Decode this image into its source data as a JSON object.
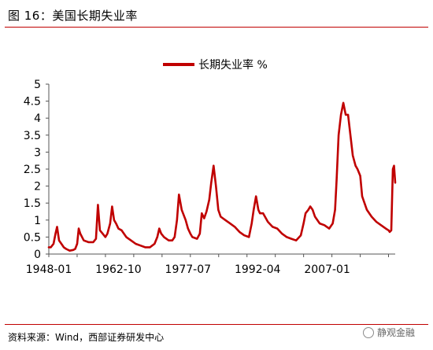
{
  "header": {
    "title": "图 16：美国长期失业率"
  },
  "footer": {
    "source": "资料来源：Wind，西部证券研发中心",
    "watermark": "静观金融"
  },
  "colors": {
    "accent": "#c00000",
    "series": "#c00000",
    "axis": "#555555"
  },
  "chart_data": {
    "type": "line",
    "title": "",
    "xlabel": "",
    "ylabel": "",
    "ylim": [
      0,
      5
    ],
    "yticks": [
      "0",
      "0.5",
      "1",
      "1.5",
      "2",
      "2.5",
      "3",
      "3.5",
      "4",
      "4.5",
      "5"
    ],
    "xticks": [
      "1948-01",
      "1962-10",
      "1977-07",
      "1992-04",
      "2007-01"
    ],
    "legend": {
      "position": "top-center"
    },
    "grid": false,
    "series": [
      {
        "name": "长期失业率 %",
        "x": [
          "1948-01",
          "1948-06",
          "1949-01",
          "1949-06",
          "1949-10",
          "1950-03",
          "1950-09",
          "1951-03",
          "1951-09",
          "1952-06",
          "1953-03",
          "1953-08",
          "1954-01",
          "1954-05",
          "1954-09",
          "1955-06",
          "1956-06",
          "1957-06",
          "1958-01",
          "1958-06",
          "1958-11",
          "1959-06",
          "1960-01",
          "1960-06",
          "1961-01",
          "1961-06",
          "1961-11",
          "1962-04",
          "1962-10",
          "1963-06",
          "1964-06",
          "1965-06",
          "1966-06",
          "1967-06",
          "1968-06",
          "1969-06",
          "1970-06",
          "1971-01",
          "1971-06",
          "1971-11",
          "1972-06",
          "1973-06",
          "1974-03",
          "1974-09",
          "1975-03",
          "1975-08",
          "1976-03",
          "1977-01",
          "1977-07",
          "1978-01",
          "1978-06",
          "1979-06",
          "1980-01",
          "1980-06",
          "1980-12",
          "1981-06",
          "1982-01",
          "1982-06",
          "1982-12",
          "1983-06",
          "1983-12",
          "1984-06",
          "1985-06",
          "1986-06",
          "1987-06",
          "1988-06",
          "1989-06",
          "1990-06",
          "1991-01",
          "1991-06",
          "1991-12",
          "1992-06",
          "1992-10",
          "1993-06",
          "1994-06",
          "1995-06",
          "1996-06",
          "1997-06",
          "1998-06",
          "1999-06",
          "2000-06",
          "2001-06",
          "2002-01",
          "2002-06",
          "2003-01",
          "2003-06",
          "2003-12",
          "2004-06",
          "2005-06",
          "2006-06",
          "2007-06",
          "2008-03",
          "2008-09",
          "2009-01",
          "2009-06",
          "2009-12",
          "2010-06",
          "2010-12",
          "2011-06",
          "2011-12",
          "2012-06",
          "2013-01",
          "2013-06",
          "2014-01",
          "2014-06",
          "2015-06",
          "2016-06",
          "2017-06",
          "2018-06",
          "2019-06",
          "2020-01",
          "2020-04",
          "2020-08",
          "2020-12",
          "2021-03",
          "2021-06"
        ],
        "values": [
          0.2,
          0.2,
          0.3,
          0.6,
          0.8,
          0.4,
          0.3,
          0.2,
          0.15,
          0.1,
          0.12,
          0.15,
          0.3,
          0.75,
          0.6,
          0.4,
          0.35,
          0.35,
          0.45,
          1.45,
          0.7,
          0.6,
          0.5,
          0.6,
          0.9,
          1.4,
          1.0,
          0.9,
          0.75,
          0.7,
          0.5,
          0.4,
          0.3,
          0.25,
          0.2,
          0.2,
          0.3,
          0.5,
          0.75,
          0.6,
          0.5,
          0.4,
          0.4,
          0.5,
          1.0,
          1.75,
          1.3,
          1.0,
          0.75,
          0.6,
          0.5,
          0.45,
          0.6,
          1.2,
          1.05,
          1.25,
          1.6,
          2.1,
          2.6,
          2.0,
          1.3,
          1.1,
          1.0,
          0.9,
          0.8,
          0.65,
          0.55,
          0.5,
          0.9,
          1.3,
          1.7,
          1.3,
          1.2,
          1.2,
          0.95,
          0.8,
          0.75,
          0.6,
          0.5,
          0.45,
          0.4,
          0.55,
          0.9,
          1.2,
          1.3,
          1.4,
          1.3,
          1.1,
          0.9,
          0.85,
          0.75,
          0.9,
          1.3,
          2.2,
          3.5,
          4.1,
          4.45,
          4.1,
          4.1,
          3.5,
          2.9,
          2.6,
          2.5,
          2.3,
          1.7,
          1.3,
          1.1,
          0.95,
          0.85,
          0.75,
          0.7,
          0.65,
          0.7,
          2.5,
          2.6,
          2.1
        ]
      }
    ]
  }
}
